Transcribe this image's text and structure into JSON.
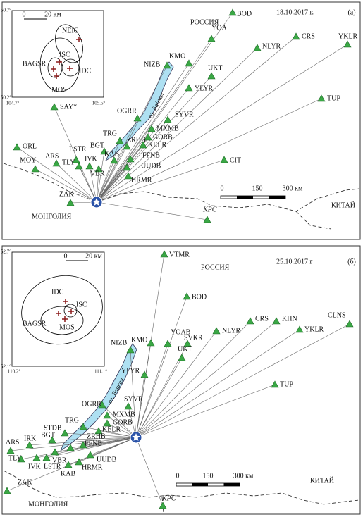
{
  "panels": [
    {
      "label": "(а)",
      "date": "18.10.2017 г.",
      "country_labels": [
        "РОССИЯ",
        "МОНГОЛИЯ",
        "КИТАЙ"
      ],
      "lake_label": "оз. Байкал",
      "scale_labels": [
        "0",
        "150",
        "300 км"
      ],
      "stations": [
        "BOD",
        "KMO",
        "YOA",
        "NLYR",
        "CRS",
        "YKLR",
        "NIZB",
        "UKT",
        "YLYR",
        "TUP",
        "OGRR",
        "SYVR",
        "SAY*",
        "MXMB",
        "TRG",
        "GORB",
        "ZRHB",
        "BGT",
        "KELR",
        "LSTR",
        "KAB",
        "FFNB",
        "ORL",
        "ARS",
        "MOY",
        "TLY",
        "IVK",
        "UUDB",
        "CIT",
        "VBR",
        "HRMR",
        "ZAK",
        "KPC"
      ],
      "inset": {
        "scale_labels": [
          "0",
          "20 км"
        ],
        "lat_labels": [
          "50.7°",
          "50.2°"
        ],
        "lon_labels": [
          "104.7°",
          "105.5°"
        ],
        "agencies": [
          "NEIC",
          "ISC",
          "BAGSR",
          "IDC",
          "MOS"
        ]
      }
    },
    {
      "label": "(б)",
      "date": "25.10.2017 г",
      "country_labels": [
        "РОССИЯ",
        "МОНГОЛИЯ",
        "КИТАЙ"
      ],
      "lake_label": "оз. Байкал",
      "scale_labels": [
        "0",
        "150",
        "300 км"
      ],
      "stations": [
        "VTMR",
        "BOD",
        "YOAB",
        "KMO",
        "SVKR",
        "UKT",
        "NLYR",
        "CRS",
        "KHN",
        "YKLR",
        "CLNS",
        "NIZB",
        "YLYR",
        "TUP",
        "OGRR",
        "SYVR",
        "MXMB",
        "GORB",
        "TRG",
        "STDB",
        "KELR",
        "BGT",
        "ZRHB",
        "IRK",
        "ARS",
        "FFNB",
        "TLY",
        "VBR",
        "UUDB",
        "IVK",
        "LSTR",
        "KAB",
        "HRMR",
        "ZAK",
        "KPC"
      ],
      "inset": {
        "scale_labels": [
          "0",
          "20 км"
        ],
        "lat_labels": [
          "52.7°",
          "52.1°"
        ],
        "lon_labels": [
          "110.2°",
          "111.1°"
        ],
        "agencies": [
          "IDC",
          "ISC",
          "BAGSR",
          "MOS"
        ]
      }
    }
  ]
}
